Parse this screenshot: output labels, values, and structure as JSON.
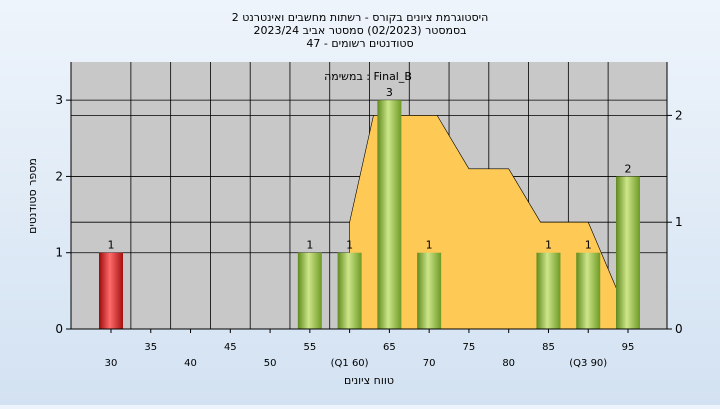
{
  "chart_data": {
    "type": "bar",
    "title_lines": [
      "היסטוגרמת ציונים בקורס - רשתות מחשבים ואינטרנט 2",
      "בסמסטר  (02/2023)  סמסטר אביב 2023/24",
      "סטודנטים רשומים - 47"
    ],
    "subtitle": "במשימה : Final_B",
    "xlabel": "טווח ציונים",
    "ylabel": "מספר סטודנטים",
    "x": [
      30,
      35,
      40,
      45,
      50,
      55,
      60,
      65,
      70,
      75,
      80,
      85,
      90,
      95
    ],
    "x_tick_labels": [
      "30",
      "35",
      "40",
      "45",
      "50",
      "55",
      "(Q1 60)",
      "65",
      "70",
      "75",
      "80",
      "85",
      "(Q3 90)",
      "95"
    ],
    "series": [
      {
        "type": "bar",
        "values": [
          1,
          0,
          0,
          0,
          0,
          1,
          1,
          3,
          1,
          0,
          0,
          1,
          1,
          2
        ],
        "data_labels": [
          "1",
          "",
          "",
          "",
          "",
          "1",
          "1",
          "3",
          "1",
          "",
          "",
          "1",
          "1",
          "2"
        ],
        "colors": [
          "#e02020",
          "#9cc14a",
          "#9cc14a",
          "#9cc14a",
          "#9cc14a",
          "#9cc14a",
          "#9cc14a",
          "#9cc14a",
          "#9cc14a",
          "#9cc14a",
          "#9cc14a",
          "#9cc14a",
          "#9cc14a",
          "#9cc14a"
        ]
      },
      {
        "type": "area",
        "axis": "right",
        "color": "#ffc955",
        "points": [
          [
            60,
            1
          ],
          [
            63,
            2
          ],
          [
            66,
            2
          ],
          [
            71,
            2
          ],
          [
            75,
            1.5
          ],
          [
            80,
            1.5
          ],
          [
            84,
            1
          ],
          [
            90,
            1
          ],
          [
            94,
            0.3
          ]
        ]
      }
    ],
    "ylim": [
      0,
      3.5
    ],
    "yticks": [
      0,
      1,
      2,
      3
    ],
    "y2lim": [
      0,
      2.5
    ],
    "y2ticks": [
      0,
      1,
      2
    ],
    "grid": true,
    "colors": {
      "plot_bg": "#c8c8c8",
      "bar_default": "#9cc14a",
      "bar_low": "#e02020",
      "area": "#ffc955"
    }
  }
}
